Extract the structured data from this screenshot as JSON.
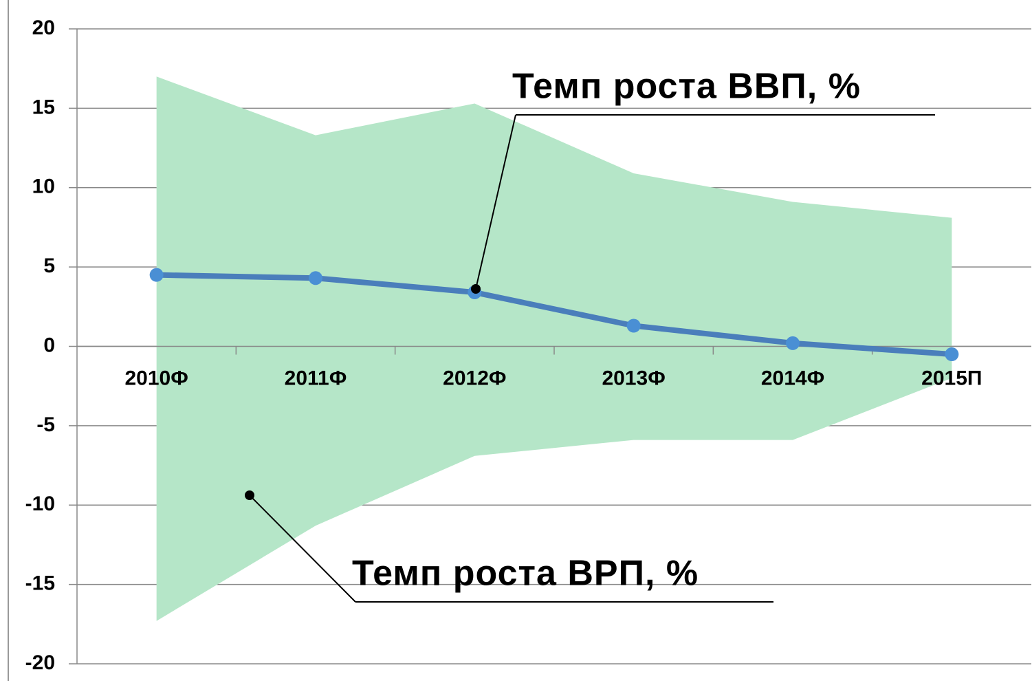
{
  "chart_data": {
    "type": "line",
    "categories": [
      "2010Ф",
      "2011Ф",
      "2012Ф",
      "2013Ф",
      "2014Ф",
      "2015П"
    ],
    "series": [
      {
        "name": "Темп роста ВРП, %",
        "type": "range",
        "color": "#b5e6c8",
        "high": [
          17.0,
          13.3,
          15.3,
          10.9,
          9.1,
          8.1
        ],
        "low": [
          -17.3,
          -11.3,
          -6.9,
          -5.9,
          -5.9,
          -2.0
        ]
      },
      {
        "name": "Темп роста ВВП, %",
        "type": "line",
        "color": "#4a7ebb",
        "marker_color": "#4a8fd4",
        "values": [
          4.5,
          4.3,
          3.4,
          1.3,
          0.2,
          -0.5
        ]
      }
    ],
    "ylim": [
      -20,
      20
    ],
    "yticks": [
      -20,
      -15,
      -10,
      -5,
      0,
      5,
      10,
      15,
      20
    ],
    "grid": true
  }
}
